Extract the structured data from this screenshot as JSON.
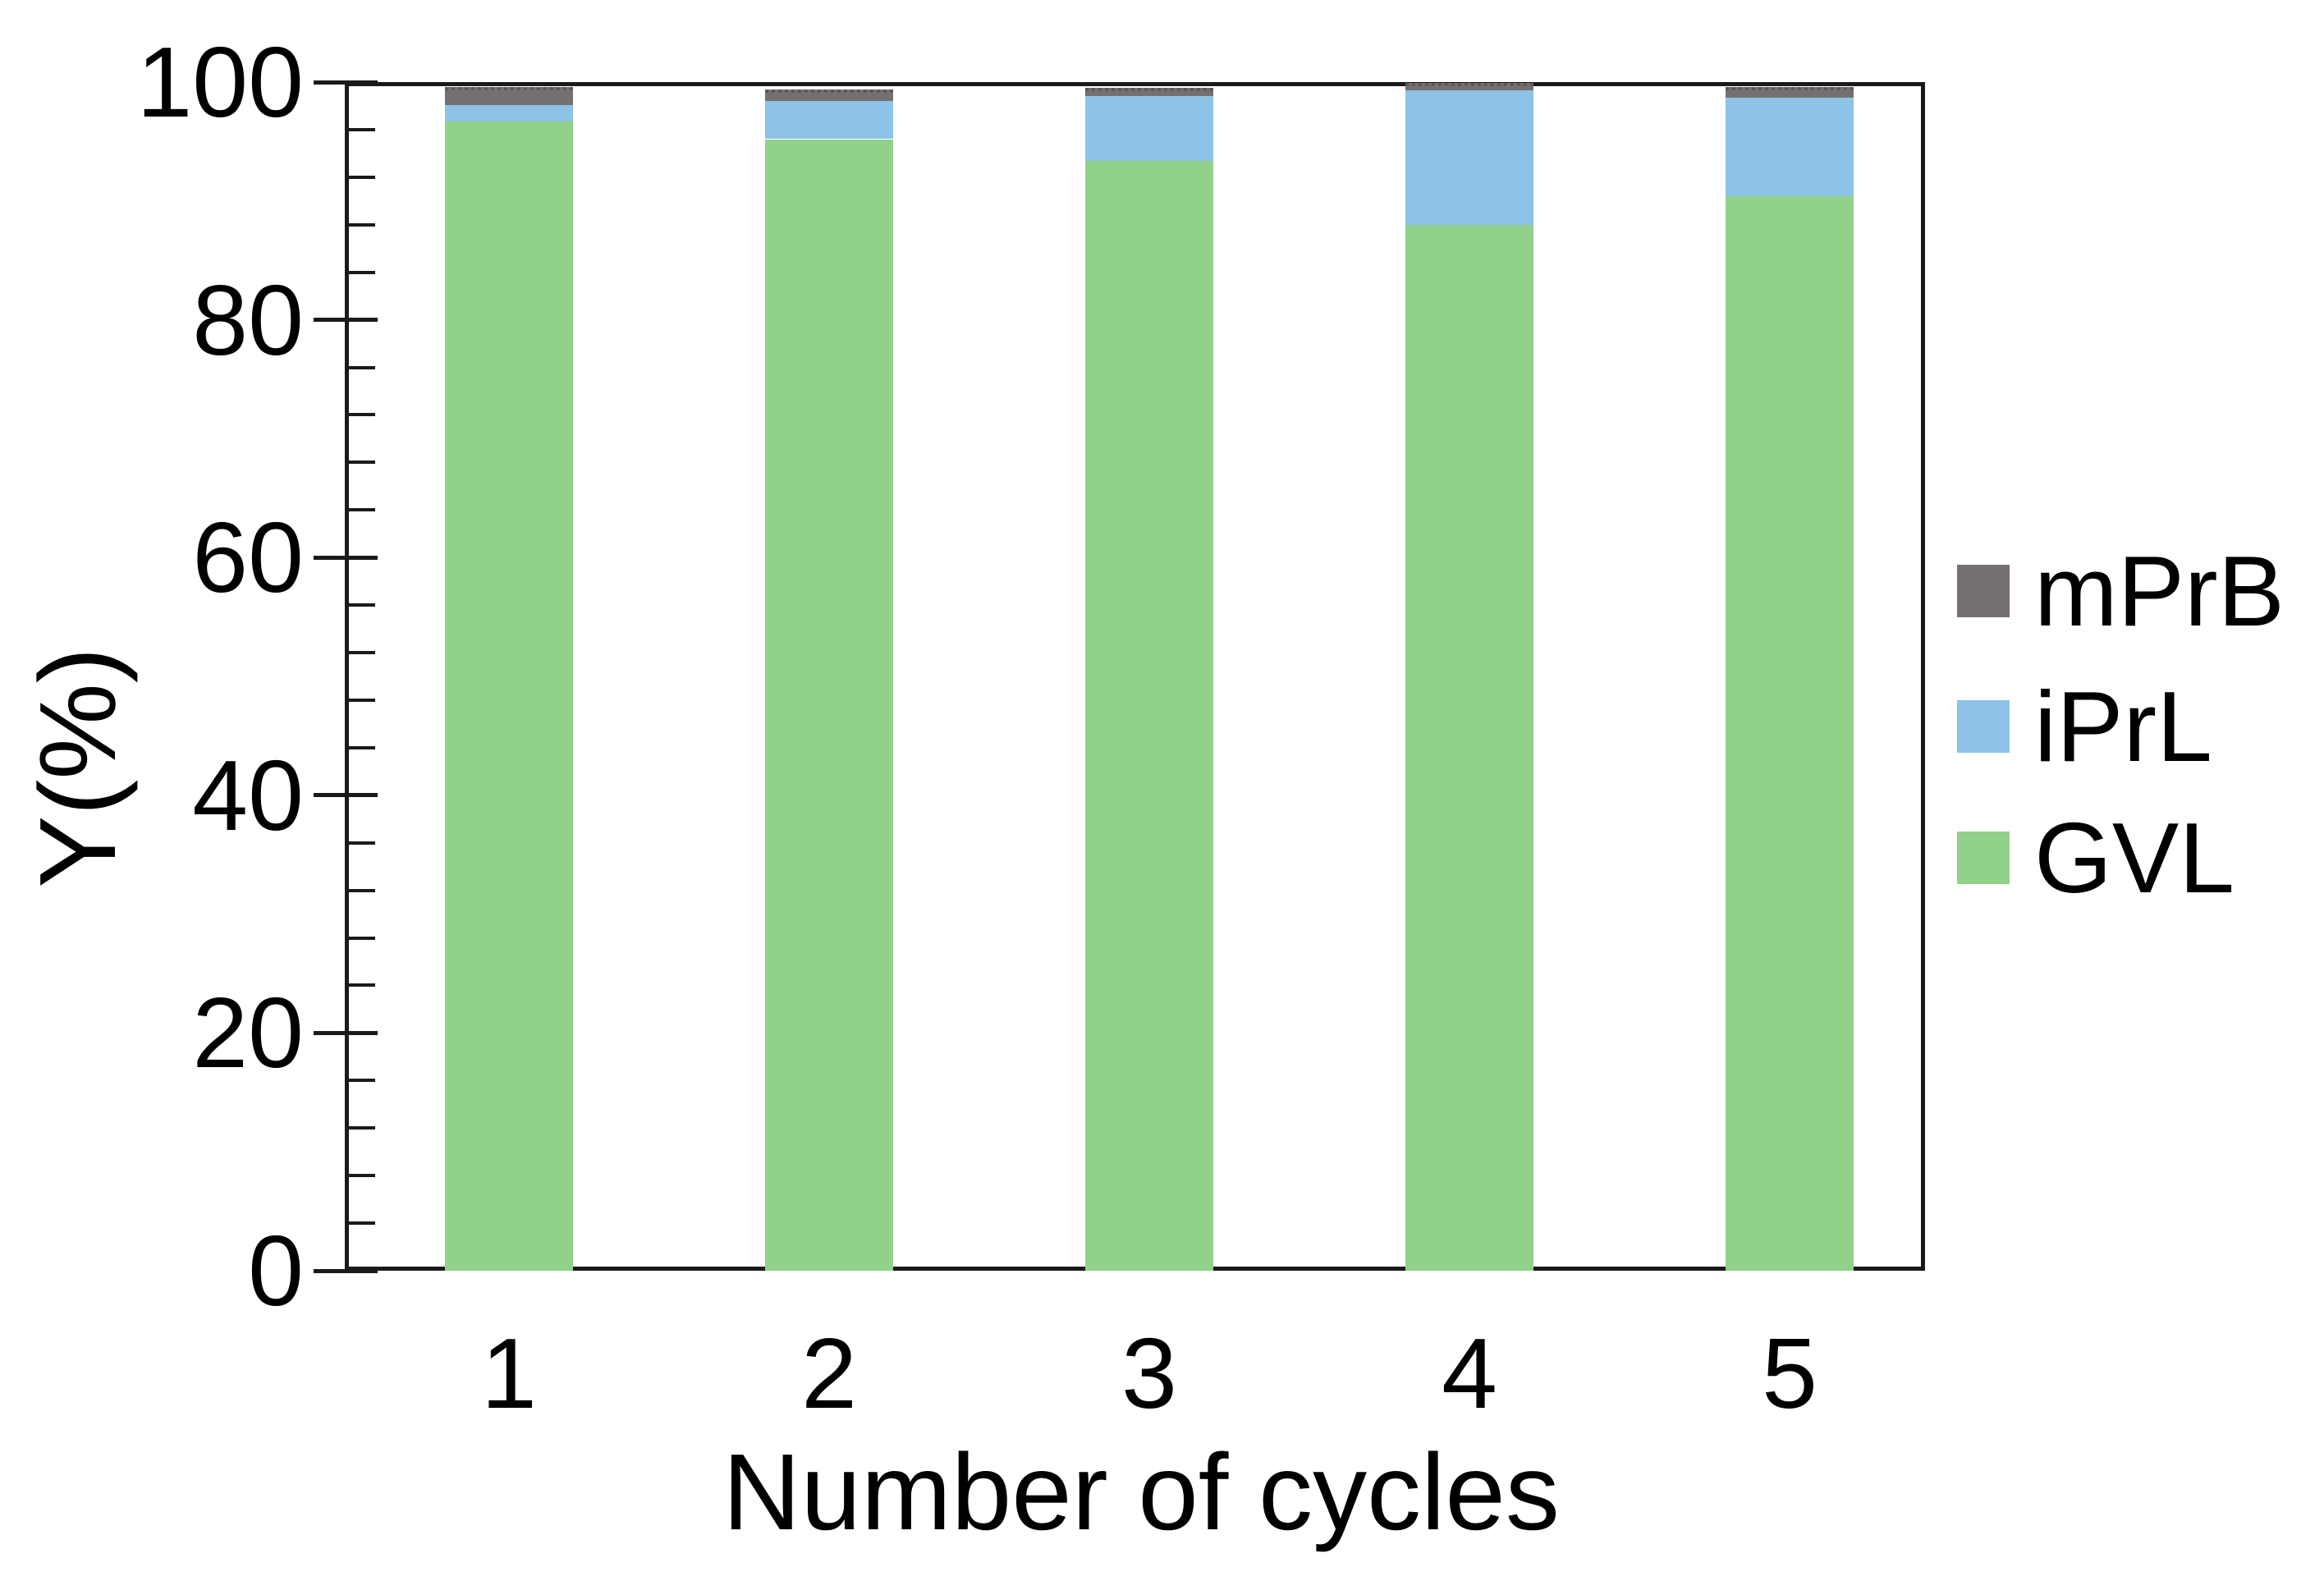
{
  "figure": {
    "background": "#ffffff",
    "axis_color": "#1a1a1a",
    "text_color": "#000000"
  },
  "chart_data": {
    "type": "bar",
    "stacked": true,
    "title": "",
    "xlabel": "Number of cycles",
    "ylabel": "Y(%)",
    "categories": [
      "1",
      "2",
      "3",
      "4",
      "5"
    ],
    "series": [
      {
        "name": "GVL",
        "color": "#92d18a",
        "values": [
          96.7,
          95.2,
          93.4,
          88.0,
          90.4
        ]
      },
      {
        "name": "iPrL",
        "color": "#8cc3e6",
        "values": [
          1.4,
          3.2,
          5.4,
          11.3,
          8.3
        ]
      },
      {
        "name": "mPrB",
        "color": "#757070",
        "values": [
          1.5,
          1.0,
          0.7,
          0.6,
          0.9
        ]
      }
    ],
    "ylim": [
      0,
      100
    ],
    "yticks": [
      0,
      20,
      40,
      60,
      80,
      100
    ],
    "minor_ticks_per_interval": 4,
    "grid": false,
    "legend_position": "right",
    "legend_order": [
      "mPrB",
      "iPrL",
      "GVL"
    ]
  }
}
